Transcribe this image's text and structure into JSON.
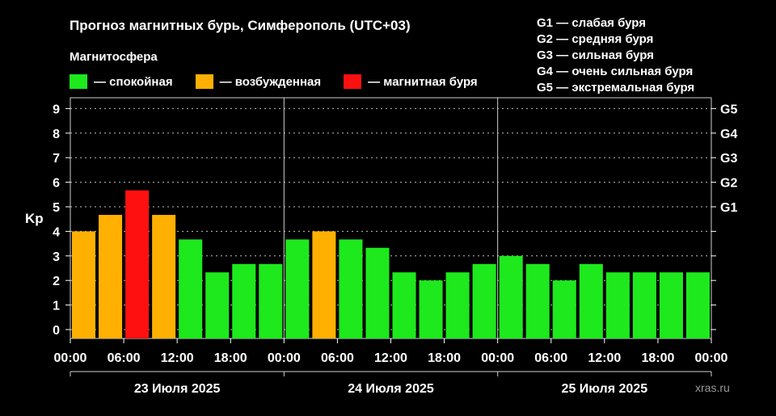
{
  "title": "Прогноз магнитных бурь, Симферополь (UTC+03)",
  "legend": {
    "title": "Магнитосфера",
    "items": [
      {
        "label": "— спокойная",
        "color": "#1de91d"
      },
      {
        "label": "— возбужденная",
        "color": "#ffb000"
      },
      {
        "label": "— магнитная буря",
        "color": "#ff1010"
      }
    ]
  },
  "g_legend": [
    "G1 — слабая буря",
    "G2 — средняя буря",
    "G3 — сильная буря",
    "G4 — очень сильная буря",
    "G5 — экстремальная буря"
  ],
  "watermark": "xras.ru",
  "chart_data": {
    "type": "bar",
    "ylabel": "Kp",
    "ylim": [
      0,
      9
    ],
    "y_ticks": [
      "0",
      "1",
      "2",
      "3",
      "4",
      "5",
      "6",
      "7",
      "8",
      "9"
    ],
    "right_ticks": [
      {
        "label": "G1",
        "kp": 5
      },
      {
        "label": "G2",
        "kp": 6
      },
      {
        "label": "G3",
        "kp": 7
      },
      {
        "label": "G4",
        "kp": 8
      },
      {
        "label": "G5",
        "kp": 9
      }
    ],
    "grid": "dotted horizontal",
    "x_tick_labels": [
      "00:00",
      "06:00",
      "12:00",
      "18:00",
      "00:00",
      "06:00",
      "12:00",
      "18:00",
      "00:00",
      "06:00",
      "12:00",
      "18:00",
      "00:00"
    ],
    "days": [
      "23 Июля 2025",
      "24 Июля 2025",
      "25 Июля 2025"
    ],
    "interval_hours": 3,
    "values": [
      4.0,
      4.67,
      5.67,
      4.67,
      3.67,
      2.33,
      2.67,
      2.67,
      3.67,
      4.0,
      3.67,
      3.33,
      2.33,
      2.0,
      2.33,
      2.67,
      3.0,
      2.67,
      2.0,
      2.67,
      2.33,
      2.33,
      2.33,
      2.33
    ],
    "colors": [
      "#ffb000",
      "#ffb000",
      "#ff1010",
      "#ffb000",
      "#1de91d",
      "#1de91d",
      "#1de91d",
      "#1de91d",
      "#1de91d",
      "#ffb000",
      "#1de91d",
      "#1de91d",
      "#1de91d",
      "#1de91d",
      "#1de91d",
      "#1de91d",
      "#1de91d",
      "#1de91d",
      "#1de91d",
      "#1de91d",
      "#1de91d",
      "#1de91d",
      "#1de91d",
      "#1de91d"
    ]
  }
}
